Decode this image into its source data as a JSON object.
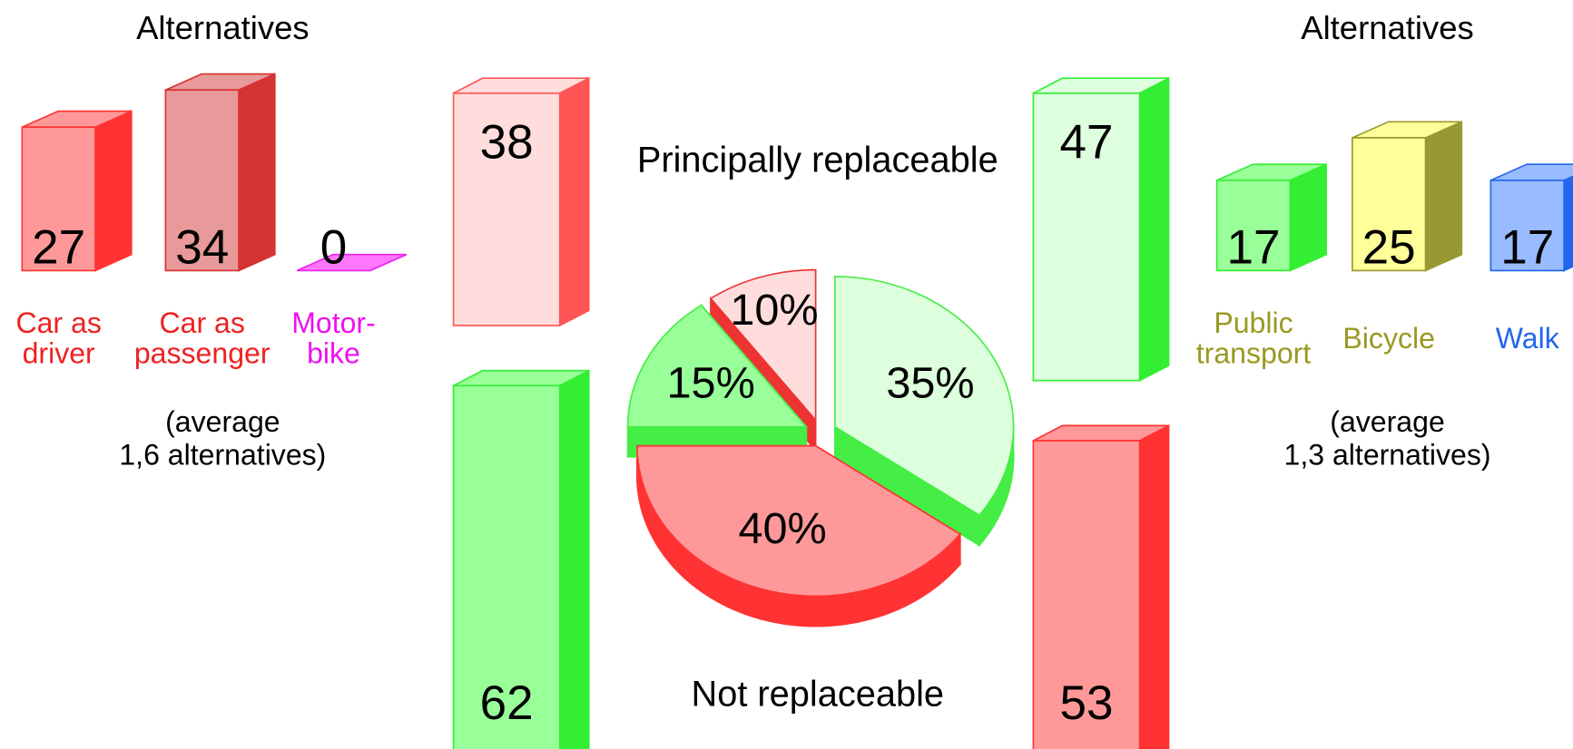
{
  "chart_data": [
    {
      "type": "bar3d",
      "title": "Alternatives",
      "categories": [
        "Car as\ndriver",
        "Car as\npassenger",
        "Motor-\nbike"
      ],
      "values": [
        27,
        34,
        0
      ],
      "colors": [
        "#ff9999",
        "#e89999",
        "#ff77ff"
      ],
      "edge_colors": [
        "#ff3333",
        "#d63333",
        "#ee22ee"
      ],
      "label_colors": [
        "#ee2222",
        "#ee2222",
        "#ee11ee"
      ],
      "note": "(average\n1,6 alternatives)"
    },
    {
      "type": "stacked_bar3d",
      "series": [
        {
          "name": "Principally replaceable",
          "values": [
            38,
            47
          ],
          "colors": [
            "#ffdddd",
            "#ddffdd"
          ],
          "edge_colors": [
            "#ff5555",
            "#33ee33"
          ]
        },
        {
          "name": "Not replaceable",
          "values": [
            62,
            53
          ],
          "colors": [
            "#99ff99",
            "#ff9999"
          ],
          "edge_colors": [
            "#33ee33",
            "#ff3333"
          ]
        }
      ]
    },
    {
      "type": "pie3d",
      "values": [
        10,
        35,
        40,
        15
      ],
      "value_labels": [
        "10%",
        "35%",
        "40%",
        "15%"
      ],
      "colors": [
        "#ffdddd",
        "#ddffdd",
        "#ff9999",
        "#99ff99"
      ],
      "edge_colors": [
        "#ee3333",
        "#44ee44",
        "#ff3333",
        "#44ee44"
      ]
    },
    {
      "type": "bar3d",
      "title": "Alternatives",
      "categories": [
        "Public\ntransport",
        "Bicycle",
        "Walk"
      ],
      "values": [
        17,
        25,
        17
      ],
      "colors": [
        "#99ff99",
        "#ffff99",
        "#99bbff"
      ],
      "edge_colors": [
        "#33ee33",
        "#999933",
        "#2266ee"
      ],
      "label_colors": [
        "#999922",
        "#999922",
        "#2266ee"
      ],
      "note": "(average\n1,3 alternatives)"
    }
  ]
}
